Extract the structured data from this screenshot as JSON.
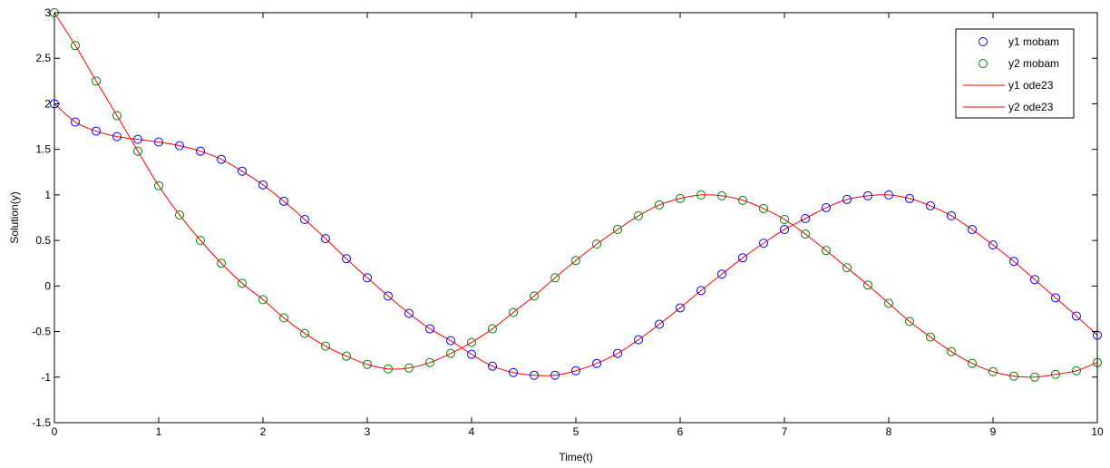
{
  "chart_data": {
    "type": "line",
    "title": "",
    "xlabel": "Time(t)",
    "ylabel": "Solution(y)",
    "xlim": [
      0,
      10
    ],
    "ylim": [
      -1.5,
      3
    ],
    "xticks": [
      0,
      1,
      2,
      3,
      4,
      5,
      6,
      7,
      8,
      9,
      10
    ],
    "xtick_labels": [
      "0",
      "1",
      "2",
      "3",
      "4",
      "5",
      "6",
      "7",
      "8",
      "9",
      "10"
    ],
    "yticks": [
      -1.5,
      -1,
      -0.5,
      0,
      0.5,
      1,
      1.5,
      2,
      2.5,
      3
    ],
    "ytick_labels": [
      "-1.5",
      "-1",
      "-0.5",
      "0",
      "0.5",
      "1",
      "1.5",
      "2",
      "2.5",
      "3"
    ],
    "grid": false,
    "legend_position": "top-right",
    "x": [
      0,
      0.2,
      0.4,
      0.6,
      0.8,
      1.0,
      1.2,
      1.4,
      1.6,
      1.8,
      2.0,
      2.2,
      2.4,
      2.6,
      2.8,
      3.0,
      3.2,
      3.4,
      3.6,
      3.8,
      4.0,
      4.2,
      4.4,
      4.6,
      4.8,
      5.0,
      5.2,
      5.4,
      5.6,
      5.8,
      6.0,
      6.2,
      6.4,
      6.6,
      6.8,
      7.0,
      7.2,
      7.4,
      7.6,
      7.8,
      8.0,
      8.2,
      8.4,
      8.6,
      8.8,
      9.0,
      9.2,
      9.4,
      9.6,
      9.8,
      10.0
    ],
    "series": [
      {
        "name": "y1 mobam",
        "style": "marker",
        "color": "#0000ff",
        "values": [
          2.0,
          1.8,
          1.7,
          1.64,
          1.61,
          1.58,
          1.54,
          1.48,
          1.39,
          1.26,
          1.11,
          0.93,
          0.73,
          0.52,
          0.3,
          0.09,
          -0.11,
          -0.3,
          -0.47,
          -0.6,
          -0.75,
          -0.88,
          -0.95,
          -0.98,
          -0.98,
          -0.93,
          -0.85,
          -0.74,
          -0.59,
          -0.42,
          -0.24,
          -0.05,
          0.13,
          0.31,
          0.47,
          0.62,
          0.74,
          0.86,
          0.95,
          0.99,
          1.0,
          0.96,
          0.88,
          0.77,
          0.62,
          0.45,
          0.27,
          0.07,
          -0.13,
          -0.33,
          -0.54
        ]
      },
      {
        "name": "y2 mobam",
        "style": "marker",
        "color": "#008000",
        "values": [
          3.0,
          2.64,
          2.25,
          1.87,
          1.48,
          1.1,
          0.78,
          0.5,
          0.25,
          0.03,
          -0.15,
          -0.35,
          -0.52,
          -0.66,
          -0.77,
          -0.86,
          -0.91,
          -0.9,
          -0.84,
          -0.74,
          -0.62,
          -0.47,
          -0.29,
          -0.11,
          0.09,
          0.28,
          0.46,
          0.62,
          0.77,
          0.89,
          0.96,
          1.0,
          0.99,
          0.94,
          0.85,
          0.73,
          0.57,
          0.39,
          0.2,
          0.01,
          -0.19,
          -0.39,
          -0.56,
          -0.72,
          -0.85,
          -0.94,
          -0.99,
          -1.0,
          -0.97,
          -0.93,
          -0.84
        ]
      },
      {
        "name": "y1 ode23",
        "style": "line",
        "color": "#ff0000",
        "values": [
          2.0,
          1.8,
          1.7,
          1.64,
          1.61,
          1.58,
          1.54,
          1.48,
          1.39,
          1.26,
          1.11,
          0.93,
          0.73,
          0.52,
          0.3,
          0.09,
          -0.11,
          -0.3,
          -0.47,
          -0.6,
          -0.75,
          -0.88,
          -0.95,
          -0.98,
          -0.98,
          -0.93,
          -0.85,
          -0.74,
          -0.59,
          -0.42,
          -0.24,
          -0.05,
          0.13,
          0.31,
          0.47,
          0.62,
          0.74,
          0.86,
          0.95,
          0.99,
          1.0,
          0.96,
          0.88,
          0.77,
          0.62,
          0.45,
          0.27,
          0.07,
          -0.13,
          -0.33,
          -0.54
        ]
      },
      {
        "name": "y2 ode23",
        "style": "line",
        "color": "#ff0000",
        "values": [
          3.0,
          2.64,
          2.25,
          1.87,
          1.48,
          1.1,
          0.78,
          0.5,
          0.25,
          0.03,
          -0.15,
          -0.35,
          -0.52,
          -0.66,
          -0.77,
          -0.86,
          -0.91,
          -0.9,
          -0.84,
          -0.74,
          -0.62,
          -0.47,
          -0.29,
          -0.11,
          0.09,
          0.28,
          0.46,
          0.62,
          0.77,
          0.89,
          0.96,
          1.0,
          0.99,
          0.94,
          0.85,
          0.73,
          0.57,
          0.39,
          0.2,
          0.01,
          -0.19,
          -0.39,
          -0.56,
          -0.72,
          -0.85,
          -0.94,
          -0.99,
          -1.0,
          -0.97,
          -0.93,
          -0.84
        ]
      }
    ]
  }
}
